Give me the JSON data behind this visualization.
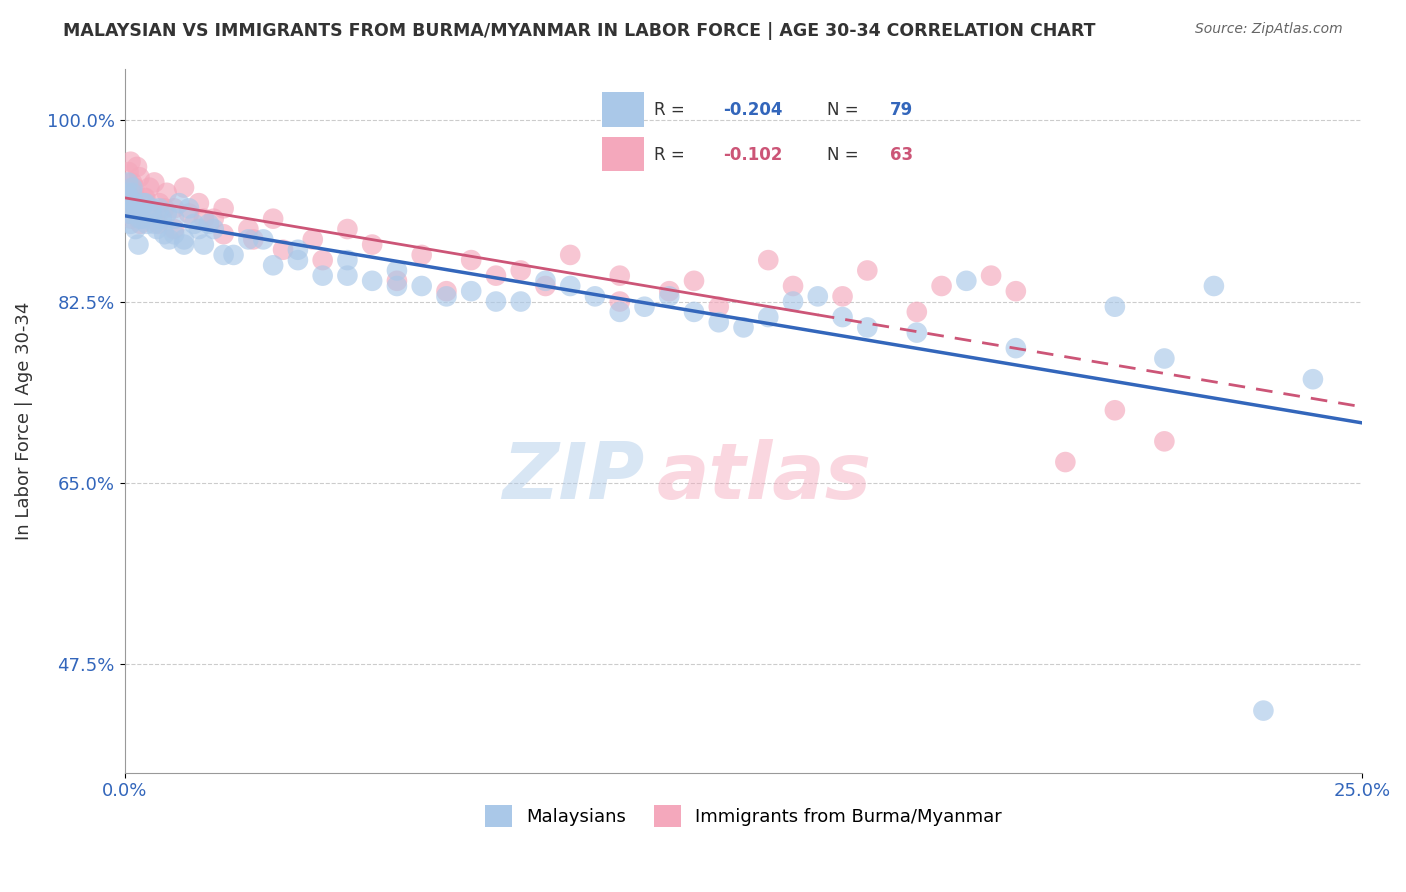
{
  "title": "MALAYSIAN VS IMMIGRANTS FROM BURMA/MYANMAR IN LABOR FORCE | AGE 30-34 CORRELATION CHART",
  "source": "Source: ZipAtlas.com",
  "ylabel": "In Labor Force | Age 30-34",
  "xlim": [
    0.0,
    25.0
  ],
  "ylim": [
    37.0,
    105.0
  ],
  "yticks": [
    47.5,
    65.0,
    82.5,
    100.0
  ],
  "xticks": [
    0.0,
    25.0
  ],
  "xtick_labels": [
    "0.0%",
    "25.0%"
  ],
  "ytick_labels": [
    "47.5%",
    "65.0%",
    "82.5%",
    "100.0%"
  ],
  "legend_labels": [
    "Malaysians",
    "Immigrants from Burma/Myanmar"
  ],
  "r_blue": -0.204,
  "n_blue": 79,
  "r_pink": -0.102,
  "n_pink": 63,
  "blue_color": "#aac8e8",
  "pink_color": "#f4a8bc",
  "blue_line_color": "#3366bb",
  "pink_line_color": "#cc5577",
  "watermark_zip_color": "#aac8e8",
  "watermark_atlas_color": "#f4a8bc",
  "blue_x": [
    0.05,
    0.08,
    0.12,
    0.15,
    0.18,
    0.22,
    0.28,
    0.35,
    0.42,
    0.5,
    0.6,
    0.7,
    0.8,
    0.9,
    1.0,
    1.1,
    1.2,
    1.3,
    1.5,
    1.7,
    2.0,
    2.5,
    3.0,
    3.5,
    4.0,
    4.5,
    5.0,
    5.5,
    6.0,
    7.0,
    8.0,
    9.0,
    10.0,
    11.0,
    12.0,
    13.0,
    14.0,
    15.0,
    17.0,
    20.0,
    22.0,
    24.0,
    0.05,
    0.07,
    0.1,
    0.13,
    0.16,
    0.2,
    0.25,
    0.3,
    0.38,
    0.45,
    0.55,
    0.65,
    0.75,
    0.85,
    1.0,
    1.2,
    1.4,
    1.6,
    1.8,
    2.2,
    2.8,
    3.5,
    4.5,
    5.5,
    6.5,
    7.5,
    8.5,
    9.5,
    10.5,
    11.5,
    12.5,
    13.5,
    14.5,
    16.0,
    18.0,
    21.0,
    23.0
  ],
  "blue_y": [
    91.0,
    92.5,
    90.0,
    93.0,
    91.5,
    89.5,
    88.0,
    90.5,
    92.0,
    91.0,
    90.0,
    91.5,
    89.0,
    88.5,
    90.5,
    92.0,
    88.0,
    91.5,
    89.5,
    90.0,
    87.0,
    88.5,
    86.0,
    87.5,
    85.0,
    86.5,
    84.5,
    85.5,
    84.0,
    83.5,
    82.5,
    84.0,
    81.5,
    83.0,
    80.5,
    81.0,
    83.0,
    80.0,
    84.5,
    82.0,
    84.0,
    75.0,
    93.0,
    94.0,
    92.5,
    91.0,
    93.5,
    92.0,
    91.5,
    90.5,
    92.0,
    90.0,
    91.5,
    89.5,
    90.5,
    91.0,
    89.0,
    88.5,
    90.0,
    88.0,
    89.5,
    87.0,
    88.5,
    86.5,
    85.0,
    84.0,
    83.0,
    82.5,
    84.5,
    83.0,
    82.0,
    81.5,
    80.0,
    82.5,
    81.0,
    79.5,
    78.0,
    77.0,
    43.0
  ],
  "pink_x": [
    0.05,
    0.08,
    0.12,
    0.15,
    0.2,
    0.25,
    0.3,
    0.4,
    0.5,
    0.6,
    0.7,
    0.85,
    1.0,
    1.2,
    1.5,
    1.8,
    2.0,
    2.5,
    3.0,
    3.8,
    4.5,
    5.0,
    6.0,
    7.0,
    8.0,
    9.0,
    10.0,
    11.5,
    13.0,
    15.0,
    16.5,
    18.0,
    0.05,
    0.09,
    0.13,
    0.18,
    0.23,
    0.32,
    0.42,
    0.55,
    0.68,
    0.8,
    1.0,
    1.3,
    1.6,
    2.0,
    2.6,
    3.2,
    4.0,
    5.5,
    6.5,
    7.5,
    8.5,
    10.0,
    11.0,
    12.0,
    13.5,
    14.5,
    16.0,
    17.5,
    19.0,
    20.0,
    21.0
  ],
  "pink_y": [
    93.0,
    95.0,
    96.0,
    94.0,
    93.5,
    95.5,
    94.5,
    92.5,
    93.5,
    94.0,
    92.0,
    93.0,
    91.5,
    93.5,
    92.0,
    90.5,
    91.5,
    89.5,
    90.5,
    88.5,
    89.5,
    88.0,
    87.0,
    86.5,
    85.5,
    87.0,
    85.0,
    84.5,
    86.5,
    85.5,
    84.0,
    83.5,
    91.0,
    92.5,
    90.5,
    93.0,
    91.5,
    90.0,
    92.5,
    91.0,
    90.0,
    91.5,
    89.5,
    91.0,
    90.5,
    89.0,
    88.5,
    87.5,
    86.5,
    84.5,
    83.5,
    85.0,
    84.0,
    82.5,
    83.5,
    82.0,
    84.0,
    83.0,
    81.5,
    85.0,
    67.0,
    72.0,
    69.0
  ]
}
